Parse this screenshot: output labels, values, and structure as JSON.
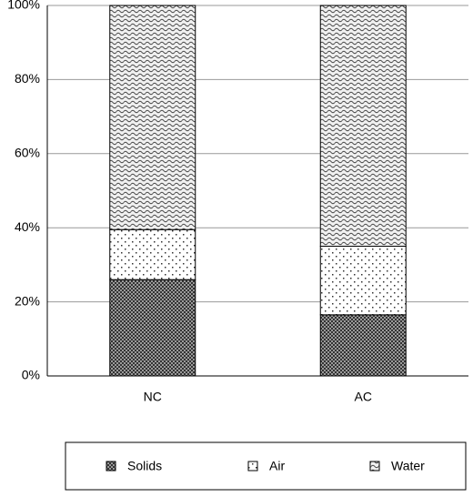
{
  "chart_data": {
    "type": "stacked_bar",
    "categories": [
      "NC",
      "AC"
    ],
    "series": [
      {
        "name": "Solids",
        "color": "#7a7a7a",
        "values": [
          26,
          16.5
        ]
      },
      {
        "name": "Air",
        "color": "#ffffff",
        "values": [
          13.5,
          18.5
        ]
      },
      {
        "name": "Water",
        "color": "#d8d8d8",
        "values": [
          60.5,
          65
        ]
      }
    ],
    "ylim": [
      0,
      100
    ],
    "yticks": [
      {
        "value": 0,
        "label": "0%"
      },
      {
        "value": 20,
        "label": "20%"
      },
      {
        "value": 40,
        "label": "40%"
      },
      {
        "value": 60,
        "label": "60%"
      },
      {
        "value": 80,
        "label": "80%"
      },
      {
        "value": 100,
        "label": "100%"
      }
    ],
    "grid": true,
    "legend": "bottom"
  }
}
